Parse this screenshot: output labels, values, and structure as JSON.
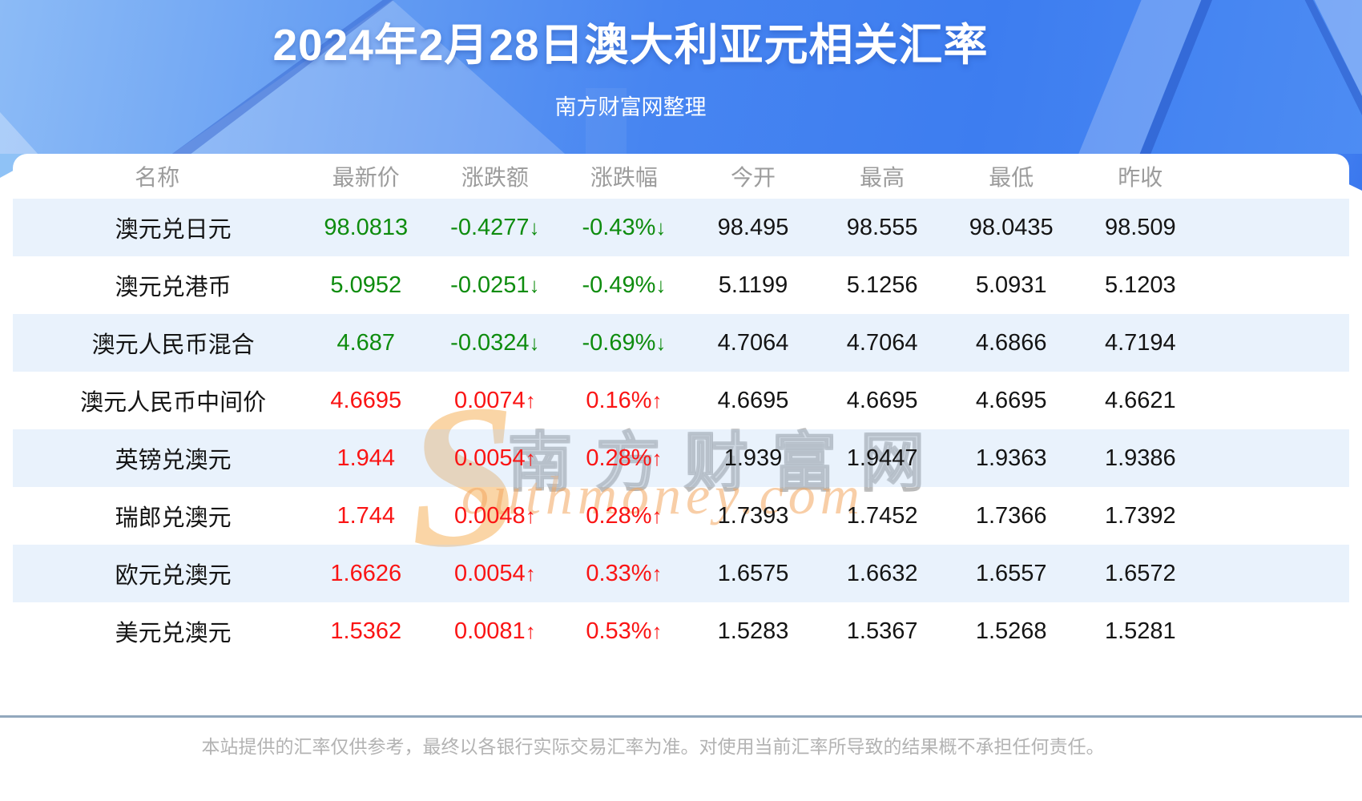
{
  "header": {
    "title": "2024年2月28日澳大利亚元相关汇率",
    "subtitle": "南方财富网整理"
  },
  "chart_data": {
    "type": "table",
    "title": "2024年2月28日澳大利亚元相关汇率",
    "columns": [
      "名称",
      "最新价",
      "涨跌额",
      "涨跌幅",
      "今开",
      "最高",
      "最低",
      "昨收"
    ],
    "rows": [
      {
        "name": "澳元兑日元",
        "last": "98.0813",
        "change": "-0.4277",
        "pct": "-0.43%",
        "dir": "down",
        "open": "98.495",
        "high": "98.555",
        "low": "98.0435",
        "prev": "98.509"
      },
      {
        "name": "澳元兑港币",
        "last": "5.0952",
        "change": "-0.0251",
        "pct": "-0.49%",
        "dir": "down",
        "open": "5.1199",
        "high": "5.1256",
        "low": "5.0931",
        "prev": "5.1203"
      },
      {
        "name": "澳元人民币混合",
        "last": "4.687",
        "change": "-0.0324",
        "pct": "-0.69%",
        "dir": "down",
        "open": "4.7064",
        "high": "4.7064",
        "low": "4.6866",
        "prev": "4.7194"
      },
      {
        "name": "澳元人民币中间价",
        "last": "4.6695",
        "change": "0.0074",
        "pct": "0.16%",
        "dir": "up",
        "open": "4.6695",
        "high": "4.6695",
        "low": "4.6695",
        "prev": "4.6621"
      },
      {
        "name": "英镑兑澳元",
        "last": "1.944",
        "change": "0.0054",
        "pct": "0.28%",
        "dir": "up",
        "open": "1.939",
        "high": "1.9447",
        "low": "1.9363",
        "prev": "1.9386"
      },
      {
        "name": "瑞郎兑澳元",
        "last": "1.744",
        "change": "0.0048",
        "pct": "0.28%",
        "dir": "up",
        "open": "1.7393",
        "high": "1.7452",
        "low": "1.7366",
        "prev": "1.7392"
      },
      {
        "name": "欧元兑澳元",
        "last": "1.6626",
        "change": "0.0054",
        "pct": "0.33%",
        "dir": "up",
        "open": "1.6575",
        "high": "1.6632",
        "low": "1.6557",
        "prev": "1.6572"
      },
      {
        "name": "美元兑澳元",
        "last": "1.5362",
        "change": "0.0081",
        "pct": "0.53%",
        "dir": "up",
        "open": "1.5283",
        "high": "1.5367",
        "low": "1.5268",
        "prev": "1.5281"
      }
    ]
  },
  "icons": {
    "up_arrow": "↑",
    "down_arrow": "↓"
  },
  "watermark": {
    "s": "S",
    "cn": "南方财富网",
    "en": "outhmoney.com"
  },
  "footer": {
    "disclaimer": "本站提供的汇率仅供参考，最终以各银行实际交易汇率为准。对使用当前汇率所导致的结果概不承担任何责任。"
  },
  "colors": {
    "up_red": "#fa1414",
    "down_green": "#0e8c0e",
    "banner_blue": "#3d7df0",
    "row_alt": "#ebf3fc",
    "divider": "#92a8bd",
    "header_text": "#9c9c9c",
    "footer_text": "#b3b3b3",
    "watermark_orange": "#f3a75c"
  }
}
